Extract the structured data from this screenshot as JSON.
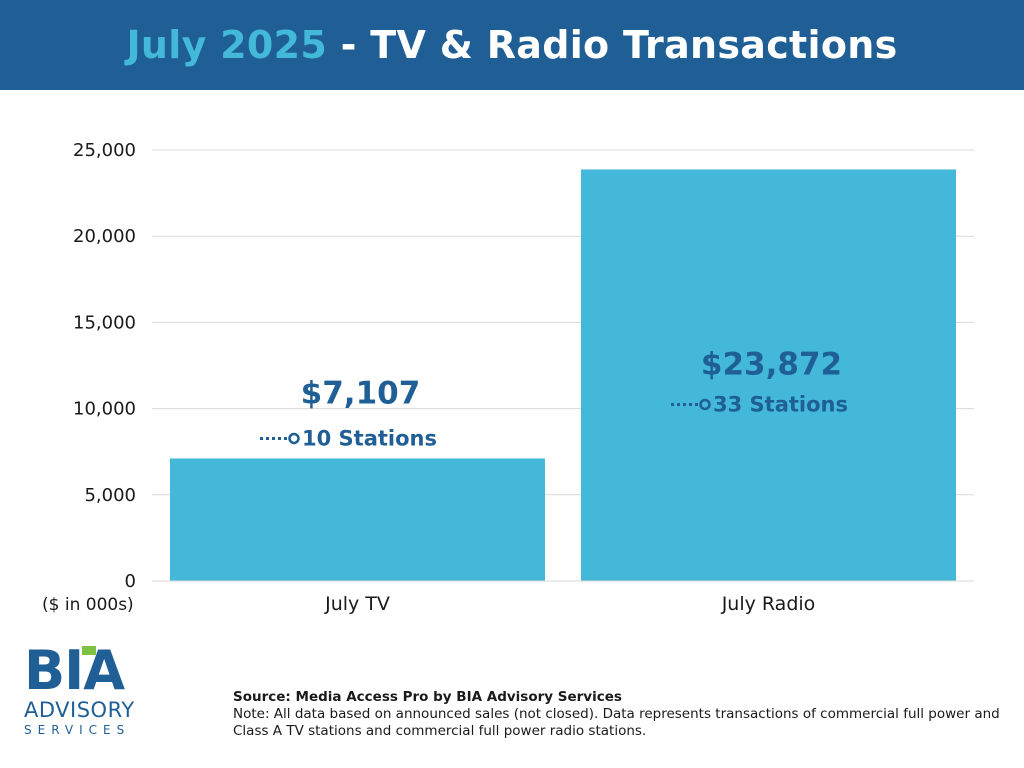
{
  "header": {
    "title_highlight": "July 2025",
    "title_rest": " - TV & Radio Transactions"
  },
  "colors": {
    "header_bg": "#1f5f96",
    "title_highlight": "#43b8d8",
    "bar": "#43b8d8",
    "label": "#1f5f96",
    "logo_accent": "#7dc242"
  },
  "chart_data": {
    "type": "bar",
    "categories": [
      "July TV",
      "July Radio"
    ],
    "values": [
      7107,
      23872
    ],
    "value_labels": [
      "$7,107",
      "$23,872"
    ],
    "station_labels": [
      "10 Stations",
      "33 Stations"
    ],
    "ylim": [
      0,
      25000
    ],
    "yticks": [
      0,
      5000,
      10000,
      15000,
      20000,
      25000
    ],
    "ytick_labels": [
      "0",
      "5,000",
      "10,000",
      "15,000",
      "20,000",
      "25,000"
    ],
    "grid": true,
    "unit_note": "($ in 000s)"
  },
  "logo": {
    "line1": "BIA",
    "line2": "ADVISORY",
    "line3": "SERVICES",
    "icon": "bia-logo-icon"
  },
  "footer": {
    "source": "Source: Media Access Pro by BIA Advisory Services",
    "note": "Note: All data based on announced sales (not closed).  Data represents transactions of commercial full power and Class A TV stations and commercial full power radio stations."
  }
}
